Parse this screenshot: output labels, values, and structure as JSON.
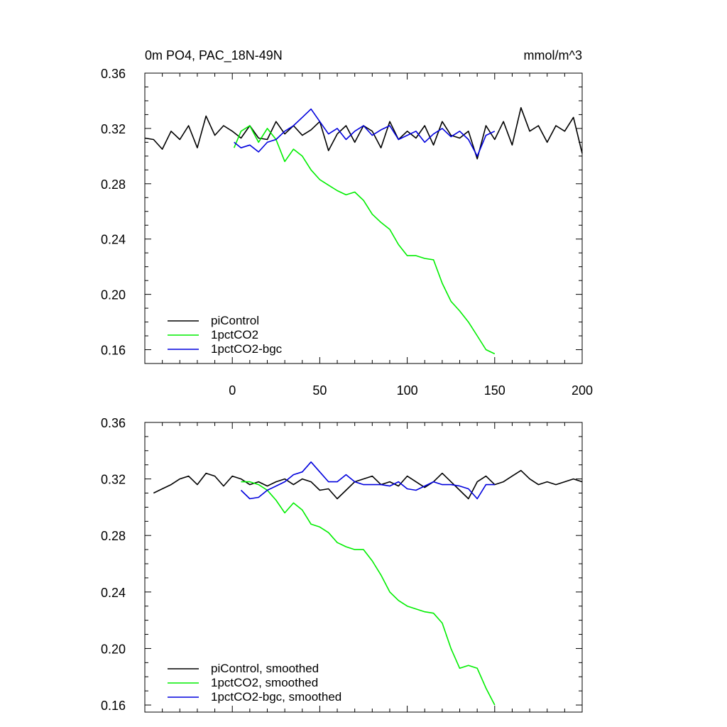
{
  "figure": {
    "title": "0m PO4, PAC_18N-49N",
    "units": "mmol/m^3"
  },
  "colors": {
    "piControl": "#000000",
    "1pctCO2": "#00ee00",
    "1pctCO2-bgc": "#0000dd"
  },
  "chart_data": [
    {
      "type": "line",
      "panel": "top",
      "xlim": [
        -50,
        200
      ],
      "ylim": [
        0.15,
        0.36
      ],
      "xticks": [
        "0",
        "50",
        "100",
        "150",
        "200"
      ],
      "yticks": [
        "0.16",
        "0.20",
        "0.24",
        "0.28",
        "0.32",
        "0.36"
      ],
      "legend": [
        "piControl",
        "1pctCO2",
        "1pctCO2-bgc"
      ],
      "legend_position": "bottom-left",
      "series": [
        {
          "name": "piControl",
          "color": "#000000",
          "x": [
            -50,
            -45,
            -40,
            -35,
            -30,
            -25,
            -20,
            -15,
            -10,
            -5,
            0,
            5,
            10,
            15,
            20,
            25,
            30,
            35,
            40,
            45,
            50,
            55,
            60,
            65,
            70,
            75,
            80,
            85,
            90,
            95,
            100,
            105,
            110,
            115,
            120,
            125,
            130,
            135,
            140,
            145,
            150,
            155,
            160,
            165,
            170,
            175,
            180,
            185,
            190,
            195,
            200
          ],
          "y": [
            0.313,
            0.312,
            0.305,
            0.318,
            0.312,
            0.322,
            0.306,
            0.329,
            0.315,
            0.322,
            0.318,
            0.313,
            0.322,
            0.313,
            0.312,
            0.325,
            0.316,
            0.322,
            0.315,
            0.319,
            0.325,
            0.304,
            0.316,
            0.322,
            0.31,
            0.322,
            0.318,
            0.306,
            0.325,
            0.312,
            0.318,
            0.313,
            0.322,
            0.308,
            0.325,
            0.315,
            0.313,
            0.318,
            0.298,
            0.322,
            0.312,
            0.325,
            0.308,
            0.335,
            0.318,
            0.322,
            0.31,
            0.322,
            0.318,
            0.328,
            0.302
          ]
        },
        {
          "name": "1pctCO2",
          "color": "#00ee00",
          "x": [
            1,
            5,
            10,
            15,
            20,
            25,
            30,
            35,
            40,
            45,
            50,
            55,
            60,
            65,
            70,
            75,
            80,
            85,
            90,
            95,
            100,
            105,
            110,
            115,
            120,
            125,
            130,
            135,
            140,
            145,
            150
          ],
          "y": [
            0.306,
            0.318,
            0.322,
            0.31,
            0.32,
            0.312,
            0.296,
            0.305,
            0.3,
            0.29,
            0.283,
            0.279,
            0.275,
            0.272,
            0.274,
            0.268,
            0.258,
            0.252,
            0.247,
            0.236,
            0.228,
            0.228,
            0.226,
            0.225,
            0.208,
            0.195,
            0.188,
            0.18,
            0.17,
            0.16,
            0.157
          ]
        },
        {
          "name": "1pctCO2-bgc",
          "color": "#0000dd",
          "x": [
            1,
            5,
            10,
            15,
            20,
            25,
            30,
            35,
            40,
            45,
            50,
            55,
            60,
            65,
            70,
            75,
            80,
            85,
            90,
            95,
            100,
            105,
            110,
            115,
            120,
            125,
            130,
            135,
            140,
            145,
            150
          ],
          "y": [
            0.31,
            0.306,
            0.308,
            0.303,
            0.31,
            0.312,
            0.318,
            0.322,
            0.328,
            0.334,
            0.325,
            0.316,
            0.32,
            0.312,
            0.318,
            0.322,
            0.315,
            0.319,
            0.322,
            0.312,
            0.315,
            0.318,
            0.31,
            0.316,
            0.32,
            0.314,
            0.318,
            0.312,
            0.3,
            0.315,
            0.318
          ]
        }
      ]
    },
    {
      "type": "line",
      "panel": "bottom",
      "xlim": [
        -50,
        200
      ],
      "ylim": [
        0.155,
        0.36
      ],
      "yticks": [
        "0.16",
        "0.20",
        "0.24",
        "0.28",
        "0.32",
        "0.36"
      ],
      "legend": [
        "piControl, smoothed",
        "1pctCO2, smoothed",
        "1pctCO2-bgc, smoothed"
      ],
      "legend_position": "bottom-left",
      "series": [
        {
          "name": "piControl, smoothed",
          "color": "#000000",
          "x": [
            -45,
            -40,
            -35,
            -30,
            -25,
            -20,
            -15,
            -10,
            -5,
            0,
            5,
            10,
            15,
            20,
            25,
            30,
            35,
            40,
            45,
            50,
            55,
            60,
            65,
            70,
            75,
            80,
            85,
            90,
            95,
            100,
            105,
            110,
            115,
            120,
            125,
            130,
            135,
            140,
            145,
            150,
            155,
            160,
            165,
            170,
            175,
            180,
            185,
            190,
            195,
            200
          ],
          "y": [
            0.31,
            0.313,
            0.316,
            0.32,
            0.322,
            0.316,
            0.324,
            0.322,
            0.315,
            0.322,
            0.32,
            0.316,
            0.318,
            0.315,
            0.318,
            0.32,
            0.316,
            0.32,
            0.318,
            0.312,
            0.313,
            0.306,
            0.312,
            0.318,
            0.32,
            0.322,
            0.316,
            0.318,
            0.315,
            0.322,
            0.318,
            0.314,
            0.318,
            0.324,
            0.318,
            0.312,
            0.306,
            0.318,
            0.322,
            0.316,
            0.318,
            0.322,
            0.326,
            0.32,
            0.316,
            0.318,
            0.316,
            0.318,
            0.32,
            0.318
          ]
        },
        {
          "name": "1pctCO2, smoothed",
          "color": "#00ee00",
          "x": [
            5,
            10,
            15,
            20,
            25,
            30,
            35,
            40,
            45,
            50,
            55,
            60,
            65,
            70,
            75,
            80,
            85,
            90,
            95,
            100,
            105,
            110,
            115,
            120,
            125,
            130,
            135,
            140,
            145,
            150
          ],
          "y": [
            0.318,
            0.318,
            0.316,
            0.312,
            0.305,
            0.296,
            0.303,
            0.298,
            0.288,
            0.286,
            0.282,
            0.275,
            0.272,
            0.27,
            0.27,
            0.262,
            0.252,
            0.24,
            0.234,
            0.23,
            0.228,
            0.226,
            0.225,
            0.218,
            0.2,
            0.186,
            0.188,
            0.186,
            0.172,
            0.16
          ]
        },
        {
          "name": "1pctCO2-bgc, smoothed",
          "color": "#0000dd",
          "x": [
            5,
            10,
            15,
            20,
            25,
            30,
            35,
            40,
            45,
            50,
            55,
            60,
            65,
            70,
            75,
            80,
            85,
            90,
            95,
            100,
            105,
            110,
            115,
            120,
            125,
            130,
            135,
            140,
            145,
            150
          ],
          "y": [
            0.312,
            0.306,
            0.307,
            0.312,
            0.315,
            0.318,
            0.323,
            0.325,
            0.332,
            0.325,
            0.318,
            0.318,
            0.323,
            0.318,
            0.316,
            0.316,
            0.316,
            0.315,
            0.318,
            0.313,
            0.312,
            0.315,
            0.318,
            0.316,
            0.316,
            0.315,
            0.313,
            0.306,
            0.316,
            0.316
          ]
        }
      ]
    }
  ]
}
